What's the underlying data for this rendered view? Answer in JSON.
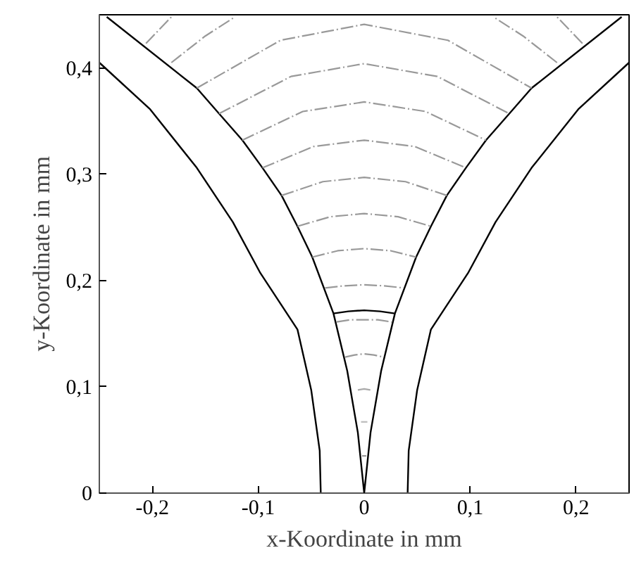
{
  "chart_data": {
    "type": "line",
    "xlabel": "x-Koordinate in mm",
    "ylabel": "y-Koordinate in mm",
    "xlim": [
      -0.25,
      0.25
    ],
    "ylim": [
      0,
      0.45
    ],
    "xticks": [
      {
        "value": -0.2,
        "label": "-0,2"
      },
      {
        "value": -0.1,
        "label": "-0,1"
      },
      0,
      {
        "value": 0.1,
        "label": "0,1"
      },
      {
        "value": 0.2,
        "label": "0,2"
      }
    ],
    "yticks": [
      0,
      {
        "value": 0.1,
        "label": "0,1"
      },
      {
        "value": 0.2,
        "label": "0,2"
      },
      {
        "value": 0.3,
        "label": "0,3"
      },
      {
        "value": 0.4,
        "label": "0,4"
      }
    ],
    "grid": false,
    "marker": "none",
    "series": [
      {
        "color": "#000000",
        "line_style": "solid",
        "x": [
          -0.243,
          -0.158,
          -0.137,
          -0.115,
          -0.096,
          -0.078,
          -0.063,
          -0.049,
          -0.029,
          -0.016,
          -0.006,
          0
        ],
        "values": [
          0.448,
          0.381,
          0.357,
          0.332,
          0.306,
          0.28,
          0.251,
          0.222,
          0.169,
          0.115,
          0.057,
          0
        ]
      },
      {
        "color": "#000000",
        "line_style": "solid",
        "x": [
          0.243,
          0.158,
          0.137,
          0.115,
          0.096,
          0.078,
          0.063,
          0.049,
          0.029,
          0.016,
          0.006,
          0
        ],
        "values": [
          0.448,
          0.381,
          0.357,
          0.332,
          0.306,
          0.28,
          0.251,
          0.222,
          0.169,
          0.115,
          0.057,
          0
        ]
      },
      {
        "color": "#000000",
        "line_style": "solid",
        "x": [
          -0.25,
          -0.202,
          -0.158,
          -0.124,
          -0.098,
          -0.063,
          -0.05,
          -0.042,
          -0.041
        ],
        "values": [
          0.405,
          0.361,
          0.306,
          0.255,
          0.207,
          0.154,
          0.097,
          0.04,
          0
        ]
      },
      {
        "color": "#000000",
        "line_style": "solid",
        "x": [
          0.25,
          0.202,
          0.158,
          0.124,
          0.098,
          0.063,
          0.05,
          0.042,
          0.041
        ],
        "values": [
          0.405,
          0.361,
          0.306,
          0.255,
          0.207,
          0.154,
          0.097,
          0.04,
          0
        ]
      },
      {
        "color": "#000000",
        "line_style": "solid",
        "x": [
          -0.029,
          -0.015,
          0,
          0.015,
          0.029
        ],
        "values": [
          0.169,
          0.171,
          0.172,
          0.171,
          0.169
        ]
      },
      {
        "color": "#999999",
        "line_style": "dashdot",
        "x": [
          -0.206,
          -0.182
        ],
        "values": [
          0.423,
          0.448
        ]
      },
      {
        "color": "#999999",
        "line_style": "dashdot",
        "x": [
          -0.182,
          -0.15,
          -0.122
        ],
        "values": [
          0.405,
          0.43,
          0.448
        ]
      },
      {
        "color": "#999999",
        "line_style": "dashdot",
        "x": [
          0.182,
          0.15,
          0.122
        ],
        "values": [
          0.405,
          0.43,
          0.448
        ]
      },
      {
        "color": "#999999",
        "line_style": "dashdot",
        "x": [
          0.206,
          0.182
        ],
        "values": [
          0.423,
          0.448
        ]
      },
      {
        "color": "#999999",
        "line_style": "dashdot",
        "x": [
          -0.158,
          -0.079,
          0,
          0.079,
          0.158
        ],
        "values": [
          0.381,
          0.426,
          0.441,
          0.426,
          0.381
        ]
      },
      {
        "color": "#999999",
        "line_style": "dashdot",
        "x": [
          -0.137,
          -0.069,
          0,
          0.069,
          0.137
        ],
        "values": [
          0.357,
          0.392,
          0.404,
          0.392,
          0.357
        ]
      },
      {
        "color": "#999999",
        "line_style": "dashdot",
        "x": [
          -0.115,
          -0.058,
          0,
          0.058,
          0.115
        ],
        "values": [
          0.332,
          0.359,
          0.368,
          0.359,
          0.332
        ]
      },
      {
        "color": "#999999",
        "line_style": "dashdot",
        "x": [
          -0.096,
          -0.048,
          0,
          0.048,
          0.096
        ],
        "values": [
          0.306,
          0.326,
          0.332,
          0.326,
          0.306
        ]
      },
      {
        "color": "#999999",
        "line_style": "dashdot",
        "x": [
          -0.078,
          -0.039,
          0,
          0.039,
          0.078
        ],
        "values": [
          0.28,
          0.293,
          0.297,
          0.293,
          0.28
        ]
      },
      {
        "color": "#999999",
        "line_style": "dashdot",
        "x": [
          -0.063,
          -0.032,
          0,
          0.032,
          0.063
        ],
        "values": [
          0.251,
          0.26,
          0.263,
          0.26,
          0.251
        ]
      },
      {
        "color": "#999999",
        "line_style": "dashdot",
        "x": [
          -0.049,
          -0.025,
          0,
          0.025,
          0.049
        ],
        "values": [
          0.222,
          0.228,
          0.23,
          0.228,
          0.222
        ]
      },
      {
        "color": "#999999",
        "line_style": "dashdot",
        "x": [
          -0.037,
          -0.019,
          0,
          0.019,
          0.037
        ],
        "values": [
          0.193,
          0.195,
          0.196,
          0.195,
          0.193
        ]
      },
      {
        "color": "#999999",
        "line_style": "dashdot",
        "x": [
          -0.026,
          -0.013,
          0,
          0.013,
          0.026
        ],
        "values": [
          0.161,
          0.163,
          0.163,
          0.163,
          0.161
        ]
      },
      {
        "color": "#999999",
        "line_style": "dashdot",
        "x": [
          -0.018,
          -0.009,
          0,
          0.009,
          0.018
        ],
        "values": [
          0.128,
          0.13,
          0.131,
          0.13,
          0.128
        ]
      },
      {
        "color": "#aaaaaa",
        "line_style": "dashdot",
        "x": [
          -0.006,
          0,
          0.006
        ],
        "values": [
          0.097,
          0.098,
          0.097
        ]
      },
      {
        "color": "#bbbbbb",
        "line_style": "dashdot",
        "x": [
          -0.003,
          0,
          0.003
        ],
        "values": [
          0.067,
          0.067,
          0.067
        ]
      },
      {
        "color": "#999999",
        "line_style": "dashdot",
        "x": [
          -0.002,
          0,
          0.002
        ],
        "values": [
          0.035,
          0.035,
          0.035
        ]
      }
    ]
  }
}
